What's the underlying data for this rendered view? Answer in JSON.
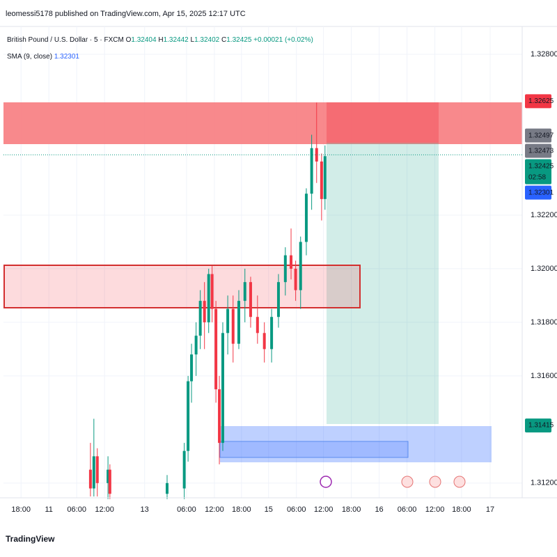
{
  "header": {
    "publisher": "leomessi5178 published on TradingView.com, Apr 15, 2025 12:17 UTC",
    "brand": "TradingView"
  },
  "chart_data": {
    "type": "candlestick",
    "title": "British Pound / U.S. Dollar · 5 · FXCM",
    "legend": [
      {
        "key": "O",
        "value": "1.32404"
      },
      {
        "key": "H",
        "value": "1.32442"
      },
      {
        "key": "L",
        "value": "1.32402"
      },
      {
        "key": "C",
        "value": "1.32425"
      }
    ],
    "change": "+0.00021 (+0.02%)",
    "indicator": {
      "name": "SMA (9, close)",
      "value": "1.32301",
      "color": "#2962ff"
    },
    "x": [
      228,
      237,
      246,
      274,
      279,
      429,
      474,
      484,
      493,
      505,
      516,
      527,
      538,
      547,
      557,
      566,
      575,
      588,
      602,
      617,
      633,
      648,
      666,
      684,
      703,
      721,
      739,
      754,
      766,
      779,
      794,
      808,
      821,
      834,
      843
    ],
    "open": [
      1.3125,
      1.3118,
      1.313,
      1.312,
      1.3125,
      1.3116,
      1.3118,
      1.3132,
      1.3158,
      1.3168,
      1.3175,
      1.3188,
      1.318,
      1.3198,
      1.3185,
      1.3155,
      1.3135,
      1.3176,
      1.3185,
      1.3172,
      1.3188,
      1.3195,
      1.3182,
      1.3176,
      1.317,
      1.3182,
      1.3195,
      1.3205,
      1.32,
      1.3192,
      1.321,
      1.3228,
      1.3245,
      1.324,
      1.3226
    ],
    "high": [
      1.3135,
      1.3144,
      1.3133,
      1.313,
      1.3127,
      1.3123,
      1.3135,
      1.316,
      1.3172,
      1.318,
      1.3192,
      1.3195,
      1.32,
      1.3201,
      1.3188,
      1.316,
      1.318,
      1.319,
      1.319,
      1.3192,
      1.32,
      1.3197,
      1.319,
      1.318,
      1.3185,
      1.3198,
      1.3208,
      1.3215,
      1.3203,
      1.3212,
      1.323,
      1.325,
      1.3262,
      1.3243,
      1.3246
    ],
    "low": [
      1.3115,
      1.3115,
      1.3115,
      1.3114,
      1.3114,
      1.3114,
      1.3114,
      1.3128,
      1.315,
      1.316,
      1.317,
      1.317,
      1.3176,
      1.318,
      1.315,
      1.3127,
      1.3132,
      1.3168,
      1.3165,
      1.317,
      1.318,
      1.3178,
      1.3172,
      1.3165,
      1.3165,
      1.3178,
      1.319,
      1.3196,
      1.3188,
      1.3185,
      1.3205,
      1.3222,
      1.3232,
      1.3218,
      1.3222
    ],
    "close": [
      1.3118,
      1.313,
      1.312,
      1.3125,
      1.3116,
      1.312,
      1.3132,
      1.3158,
      1.3168,
      1.3175,
      1.3188,
      1.318,
      1.3198,
      1.3185,
      1.3155,
      1.3135,
      1.3176,
      1.3185,
      1.3172,
      1.3188,
      1.3195,
      1.3182,
      1.3176,
      1.317,
      1.3182,
      1.3195,
      1.3205,
      1.32,
      1.3192,
      1.321,
      1.3228,
      1.3245,
      1.324,
      1.3226,
      1.3242
    ],
    "up_color": "#089981",
    "down_color": "#f23645",
    "xlim": [
      0,
      1360
    ],
    "xticks": [
      {
        "value": 46,
        "label": "18:00"
      },
      {
        "value": 119,
        "label": "11"
      },
      {
        "value": 192,
        "label": "06:00"
      },
      {
        "value": 265,
        "label": "12:00"
      },
      {
        "value": 370,
        "label": "13"
      },
      {
        "value": 480,
        "label": "06:00"
      },
      {
        "value": 553,
        "label": "12:00"
      },
      {
        "value": 624,
        "label": "18:00"
      },
      {
        "value": 695,
        "label": "15"
      },
      {
        "value": 768,
        "label": "06:00"
      },
      {
        "value": 839,
        "label": "12:00"
      },
      {
        "value": 912,
        "label": "18:00"
      },
      {
        "value": 985,
        "label": "16"
      },
      {
        "value": 1058,
        "label": "06:00"
      },
      {
        "value": 1131,
        "label": "12:00"
      },
      {
        "value": 1201,
        "label": "18:00"
      },
      {
        "value": 1276,
        "label": "17"
      }
    ],
    "ylim": [
      1.31145,
      1.32904
    ],
    "yticks": [
      {
        "value": 1.328,
        "label": "1.32800"
      },
      {
        "value": 1.322,
        "label": "1.32200"
      },
      {
        "value": 1.32,
        "label": "1.32000"
      },
      {
        "value": 1.318,
        "label": "1.31800"
      },
      {
        "value": 1.316,
        "label": "1.31600"
      },
      {
        "value": 1.312,
        "label": "1.31200"
      }
    ],
    "grid": true,
    "price_labels": [
      {
        "value": 1.32625,
        "label": "1.32625",
        "color": "#f23645"
      },
      {
        "value": 1.32497,
        "label": "1.32497",
        "color": "#787b86"
      },
      {
        "value": 1.32473,
        "label": "1.32473",
        "color": "#787b86"
      },
      {
        "value": 1.32425,
        "label": "1.32425",
        "color": "#089981",
        "sublabel": "02:58",
        "line": true
      },
      {
        "value": 1.32301,
        "label": "1.32301",
        "color": "#2962ff"
      },
      {
        "value": 1.31415,
        "label": "1.31415",
        "color": "#089981"
      }
    ]
  }
}
